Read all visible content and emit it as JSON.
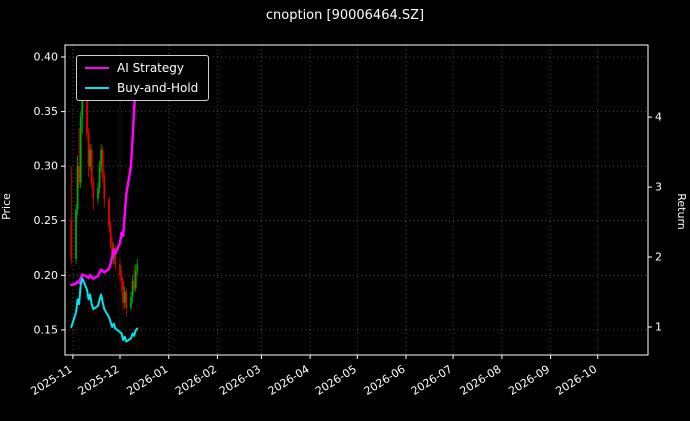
{
  "title": "cnoption [90006464.SZ]",
  "legend": {
    "items": [
      {
        "label": "AI Strategy",
        "color": "#ff00ff"
      },
      {
        "label": "Buy-and-Hold",
        "color": "#00e5ee"
      }
    ]
  },
  "chart_data": {
    "type": "candlestick+line",
    "title": "cnoption [90006464.SZ]",
    "background": "#000000",
    "grid": true,
    "legend_position": "upper-left",
    "x_domain": [
      "2025-10-27",
      "2026-11-02"
    ],
    "x_ticks": [
      {
        "label": "2025-11",
        "date": "2025-11-01"
      },
      {
        "label": "2025-12",
        "date": "2025-12-01"
      },
      {
        "label": "2026-01",
        "date": "2026-01-01"
      },
      {
        "label": "2026-02",
        "date": "2026-02-01"
      },
      {
        "label": "2026-03",
        "date": "2026-03-01"
      },
      {
        "label": "2026-04",
        "date": "2026-04-01"
      },
      {
        "label": "2026-05",
        "date": "2026-05-01"
      },
      {
        "label": "2026-06",
        "date": "2026-06-01"
      },
      {
        "label": "2026-07",
        "date": "2026-07-01"
      },
      {
        "label": "2026-08",
        "date": "2026-08-01"
      },
      {
        "label": "2026-09",
        "date": "2026-09-01"
      },
      {
        "label": "2026-10",
        "date": "2026-10-01"
      }
    ],
    "price_axis": {
      "label": "Price",
      "range": [
        0.127,
        0.411
      ],
      "ticks": [
        0.15,
        0.2,
        0.25,
        0.3,
        0.35,
        0.4
      ]
    },
    "return_axis": {
      "label": "Return",
      "range": [
        0.6,
        5.03
      ],
      "ticks": [
        1,
        2,
        3,
        4
      ]
    },
    "candles": {
      "up_color": "#00aa00",
      "down_color": "#e60000",
      "dates": [
        "2025-10-31",
        "2025-11-03",
        "2025-11-04",
        "2025-11-05",
        "2025-11-06",
        "2025-11-07",
        "2025-11-10",
        "2025-11-11",
        "2025-11-12",
        "2025-11-13",
        "2025-11-14",
        "2025-11-17",
        "2025-11-18",
        "2025-11-19",
        "2025-11-20",
        "2025-11-21",
        "2025-11-24",
        "2025-11-25",
        "2025-11-26",
        "2025-11-27",
        "2025-11-28",
        "2025-12-01",
        "2025-12-02",
        "2025-12-03",
        "2025-12-04",
        "2025-12-05",
        "2025-12-08",
        "2025-12-09",
        "2025-12-10",
        "2025-12-11",
        "2025-12-12"
      ],
      "open": [
        0.25,
        0.215,
        0.26,
        0.3,
        0.285,
        0.345,
        0.365,
        0.33,
        0.3,
        0.315,
        0.285,
        0.27,
        0.28,
        0.3,
        0.315,
        0.29,
        0.27,
        0.245,
        0.23,
        0.215,
        0.225,
        0.21,
        0.2,
        0.195,
        0.175,
        0.185,
        0.17,
        0.18,
        0.195,
        0.188,
        0.205
      ],
      "high": [
        0.3,
        0.265,
        0.31,
        0.335,
        0.35,
        0.375,
        0.37,
        0.335,
        0.32,
        0.32,
        0.29,
        0.285,
        0.305,
        0.32,
        0.318,
        0.295,
        0.272,
        0.25,
        0.235,
        0.23,
        0.228,
        0.215,
        0.205,
        0.198,
        0.19,
        0.188,
        0.185,
        0.2,
        0.21,
        0.21,
        0.215
      ],
      "low": [
        0.21,
        0.21,
        0.255,
        0.28,
        0.28,
        0.33,
        0.325,
        0.29,
        0.295,
        0.28,
        0.26,
        0.265,
        0.275,
        0.295,
        0.285,
        0.262,
        0.24,
        0.225,
        0.21,
        0.21,
        0.205,
        0.195,
        0.185,
        0.168,
        0.17,
        0.162,
        0.168,
        0.175,
        0.185,
        0.185,
        0.2
      ],
      "close": [
        0.215,
        0.26,
        0.3,
        0.285,
        0.345,
        0.365,
        0.33,
        0.3,
        0.315,
        0.285,
        0.27,
        0.28,
        0.3,
        0.315,
        0.29,
        0.27,
        0.245,
        0.23,
        0.215,
        0.225,
        0.21,
        0.2,
        0.195,
        0.175,
        0.185,
        0.17,
        0.18,
        0.195,
        0.188,
        0.205,
        0.21
      ]
    },
    "series": [
      {
        "name": "AI Strategy",
        "color": "#ff00ff",
        "axis": "return",
        "width": 2.5,
        "values": [
          1.6,
          1.62,
          1.65,
          1.63,
          1.7,
          1.75,
          1.72,
          1.7,
          1.74,
          1.71,
          1.69,
          1.73,
          1.78,
          1.82,
          1.8,
          1.78,
          1.83,
          1.9,
          2.0,
          2.1,
          2.05,
          2.2,
          2.35,
          2.3,
          2.6,
          2.9,
          3.3,
          3.7,
          4.1,
          4.5,
          4.85
        ]
      },
      {
        "name": "Buy-and-Hold",
        "color": "#00e5ee",
        "axis": "return",
        "width": 2,
        "values": [
          1.0,
          1.209,
          1.395,
          1.326,
          1.605,
          1.698,
          1.535,
          1.395,
          1.465,
          1.326,
          1.256,
          1.302,
          1.395,
          1.465,
          1.349,
          1.256,
          1.14,
          1.07,
          1.0,
          1.047,
          0.977,
          0.93,
          0.907,
          0.814,
          0.86,
          0.791,
          0.837,
          0.907,
          0.874,
          0.953,
          0.977
        ]
      }
    ]
  }
}
